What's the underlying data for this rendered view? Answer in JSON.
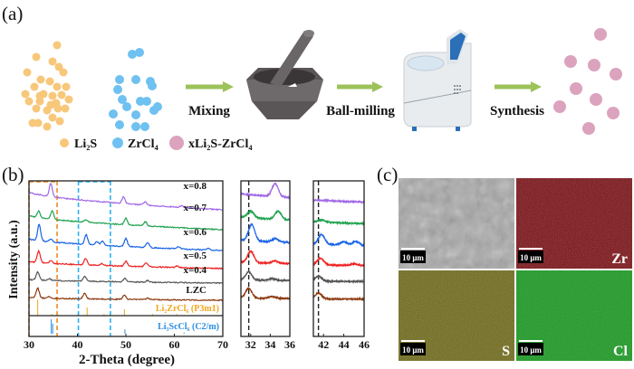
{
  "panel_a": {
    "label": "(a)",
    "steps": [
      "Mixing",
      "Ball-milling",
      "Synthesis"
    ],
    "legend": [
      {
        "name": "Li2S",
        "display": "Li₂S",
        "color": "#f7c77a"
      },
      {
        "name": "ZrCl4",
        "display": "ZrCl₄",
        "color": "#6ec1f0"
      },
      {
        "name": "xLi2S-ZrCl4",
        "display": "xLi₂S-ZrCl₄",
        "color": "#dba3bd"
      }
    ],
    "arrow_color": "#9cc25a"
  },
  "panel_b": {
    "label": "(b)"
  },
  "panel_c": {
    "label": "(c)",
    "images": [
      {
        "name": "SEM",
        "scale": "10 μm",
        "element": ""
      },
      {
        "name": "Zr",
        "scale": "10 μm",
        "element": "Zr"
      },
      {
        "name": "S",
        "scale": "10 μm",
        "element": "S"
      },
      {
        "name": "Cl",
        "scale": "10 μm",
        "element": "Cl"
      }
    ]
  },
  "chart_data": {
    "type": "line",
    "xlabel": "2-Theta (degree)",
    "ylabel": "Intensity (a.u.)",
    "xlim": [
      30,
      70
    ],
    "xticks": [
      "30",
      "40",
      "50",
      "60",
      "70"
    ],
    "zoom_panels": [
      {
        "xlim": [
          31,
          36
        ],
        "xticks": [
          "32",
          "34",
          "36"
        ],
        "marker": 31.8
      },
      {
        "xlim": [
          41,
          46
        ],
        "xticks": [
          "42",
          "44",
          "46"
        ],
        "marker": 41.5
      }
    ],
    "highlight_regions": [
      {
        "range": [
          30,
          35.8
        ],
        "color": "#f08a24"
      },
      {
        "range": [
          40.2,
          46.8
        ],
        "color": "#2bb3ee"
      }
    ],
    "series": [
      {
        "name": "x=0.8",
        "color": "#a066e6",
        "peaks": [
          [
            34.5,
            0.8
          ],
          [
            49.5,
            0.4
          ],
          [
            54,
            0.2
          ],
          [
            61.5,
            0.1
          ]
        ]
      },
      {
        "name": "x=0.7",
        "color": "#1fa24e",
        "peaks": [
          [
            32,
            0.4
          ],
          [
            34.8,
            0.5
          ],
          [
            41.8,
            0.15
          ],
          [
            50,
            0.4
          ],
          [
            54,
            0.25
          ]
        ]
      },
      {
        "name": "x=0.6",
        "color": "#1763e6",
        "peaks": [
          [
            32.1,
            1.0
          ],
          [
            34.5,
            0.2
          ],
          [
            41.8,
            0.6
          ],
          [
            44,
            0.2
          ],
          [
            45.2,
            0.25
          ],
          [
            50,
            0.5
          ],
          [
            54.5,
            0.3
          ],
          [
            60.8,
            0.15
          ],
          [
            67,
            0.1
          ]
        ]
      },
      {
        "name": "x=0.5",
        "color": "#ee2222",
        "peaks": [
          [
            32,
            0.7
          ],
          [
            34.5,
            0.15
          ],
          [
            41.7,
            0.4
          ],
          [
            45,
            0.1
          ],
          [
            50,
            0.3
          ],
          [
            54.2,
            0.25
          ],
          [
            60.5,
            0.1
          ]
        ]
      },
      {
        "name": "x=0.4",
        "color": "#555555",
        "peaks": [
          [
            31.8,
            0.5
          ],
          [
            34.2,
            0.1
          ],
          [
            41.5,
            0.3
          ],
          [
            49.8,
            0.2
          ],
          [
            54.5,
            0.1
          ]
        ]
      },
      {
        "name": "LZC",
        "color": "#8b3a10",
        "peaks": [
          [
            31.8,
            0.6
          ],
          [
            34.2,
            0.1
          ],
          [
            41.5,
            0.35
          ],
          [
            49.7,
            0.25
          ],
          [
            54.5,
            0.1
          ]
        ]
      }
    ],
    "references": [
      {
        "name": "Li2ZrCl6 (P3m1)",
        "display": "Li₂ZrCl₆ (P3m1)",
        "color": "#f3a51c",
        "sticks": [
          [
            31.8,
            1.0
          ],
          [
            34.7,
            0.1
          ],
          [
            42,
            0.5
          ],
          [
            45.5,
            0.1
          ],
          [
            49.7,
            0.4
          ],
          [
            55.5,
            0.1
          ],
          [
            60.5,
            0.1
          ]
        ]
      },
      {
        "name": "Li3ScCl6 (C2/m)",
        "display": "Li₃ScCl₆ (C2/m)",
        "color": "#2a8ee0",
        "sticks": [
          [
            34.6,
            1.0
          ],
          [
            34.9,
            0.7
          ],
          [
            49.8,
            0.3
          ],
          [
            62,
            0.08
          ]
        ]
      }
    ]
  }
}
